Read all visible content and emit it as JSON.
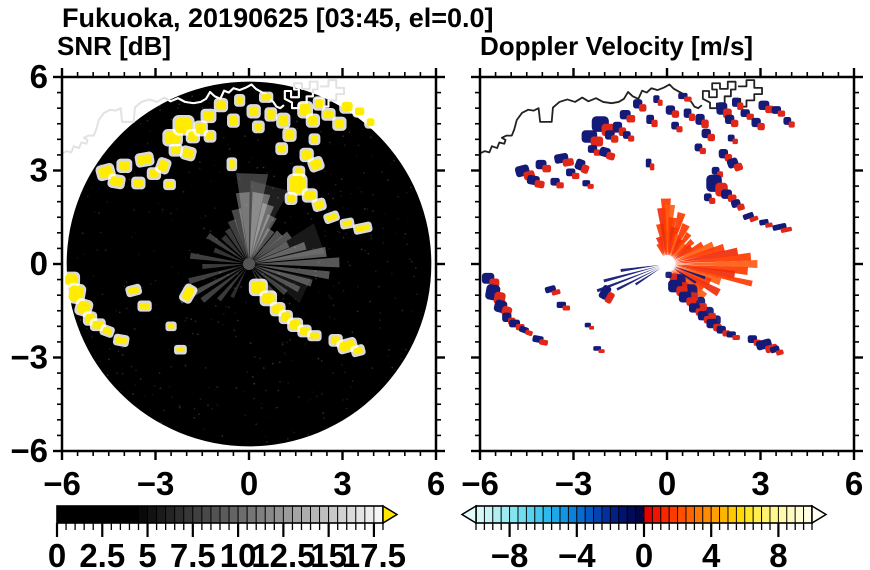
{
  "title": "Fukuoka, 20190625 [03:45, el=0.0]",
  "chart_data": {
    "type": "radar_ppi_pair",
    "title": "Fukuoka, 20190625 [03:45, el=0.0]",
    "panels": [
      {
        "subtitle": "SNR [dB]",
        "xlim": [
          -6,
          6
        ],
        "ylim": [
          -6,
          6
        ],
        "xtick_major": [
          -6,
          -3,
          0,
          3,
          6
        ],
        "xtick_labels": [
          "−6",
          "−3",
          "0",
          "3",
          "6"
        ],
        "ytick_major": [
          6,
          3,
          0,
          -3,
          -6
        ],
        "ytick_labels": [
          "6",
          "3",
          "0",
          "−3",
          "−6"
        ],
        "tick_minor_step": 0.5,
        "show_ylabels": true,
        "scan_disc": {
          "cx": 0,
          "cy": 0,
          "r": 5.85,
          "color": "#000000"
        }
      },
      {
        "subtitle": "Doppler Velocity [m/s]",
        "xlim": [
          -6,
          6
        ],
        "ylim": [
          -6,
          6
        ],
        "xtick_major": [
          -6,
          -3,
          0,
          3,
          6
        ],
        "xtick_labels": [
          "−6",
          "−3",
          "0",
          "3",
          "6"
        ],
        "ytick_major": [
          6,
          3,
          0,
          -3,
          -6
        ],
        "ytick_labels": [],
        "tick_minor_step": 0.5,
        "show_ylabels": false
      }
    ],
    "snr_colorbar": {
      "min": 0,
      "max": 18,
      "segment_step": 0.5,
      "majors": [
        0,
        2.5,
        5,
        7.5,
        10,
        12.5,
        15,
        17.5
      ],
      "labels": [
        "0",
        "2.5",
        "5",
        "7.5",
        "10",
        "12.5",
        "15",
        "17.5"
      ],
      "over": "#ffe800",
      "colors": [
        "#000000",
        "#000000",
        "#000000",
        "#000000",
        "#000000",
        "#000000",
        "#000000",
        "#000000",
        "#000000",
        "#090909",
        "#121212",
        "#1b1b1b",
        "#242424",
        "#2e2e2e",
        "#373737",
        "#404040",
        "#494949",
        "#525252",
        "#5b5b5b",
        "#646464",
        "#6d6d6d",
        "#767676",
        "#7f7f7f",
        "#898989",
        "#929292",
        "#9b9b9b",
        "#a4a4a4",
        "#adadad",
        "#b6b6b6",
        "#bfbfbf",
        "#c8c8c8",
        "#d2d2d2",
        "#dbdbdb",
        "#e4e4e4",
        "#ededed",
        "#f6f6f6"
      ]
    },
    "vel_colorbar": {
      "min": -10,
      "max": 10,
      "segment_step": 0.5,
      "majors": [
        -8,
        -4,
        0,
        4,
        8
      ],
      "labels": [
        "−8",
        "−4",
        "0",
        "4",
        "8"
      ],
      "under": "#e4fbfb",
      "over": "#fffef0",
      "colors": [
        "#d8f7f7",
        "#c4f4f5",
        "#b0f0f3",
        "#9cebf2",
        "#86e4f1",
        "#70dcf0",
        "#5ad2ef",
        "#44c6ee",
        "#2fb8ec",
        "#1da8e8",
        "#1096e2",
        "#0a82da",
        "#076cd0",
        "#0557c2",
        "#0443b2",
        "#03309e",
        "#022088",
        "#011370",
        "#010a58",
        "#010544",
        "#e60000",
        "#ef1400",
        "#f62800",
        "#fb3c00",
        "#ff5000",
        "#ff6400",
        "#ff7800",
        "#ff8c00",
        "#ffa000",
        "#ffb400",
        "#ffc800",
        "#ffd900",
        "#ffe626",
        "#ffed4d",
        "#fff270",
        "#fff68e",
        "#fff9a8",
        "#fffbbe",
        "#fffdd2",
        "#fffee2"
      ]
    },
    "colors": {
      "snr_echo": "#ffec00",
      "echo_halo": "#ffffff",
      "vel_pos_echo": "#e02818",
      "vel_neg_echo": "#141a78",
      "fan_orange": [
        "#ff3a00",
        "#f02c0c",
        "#ff5c14"
      ],
      "coast_left": "#ffffff",
      "coast_left_outside": "#e2e2e2",
      "coast_right": "#222222",
      "spoke_gray": "#cfcfcf",
      "disc": "#000000"
    },
    "coastline": [
      [
        -6.1,
        3.5
      ],
      [
        -5.85,
        3.62
      ],
      [
        -5.7,
        3.58
      ],
      [
        -5.62,
        3.78
      ],
      [
        -5.45,
        3.72
      ],
      [
        -5.38,
        3.9
      ],
      [
        -5.22,
        3.86
      ],
      [
        -5.18,
        3.98
      ],
      [
        -5.3,
        4.05
      ],
      [
        -5.15,
        4.12
      ],
      [
        -4.98,
        4.12
      ],
      [
        -4.9,
        4.32
      ],
      [
        -4.82,
        4.62
      ],
      [
        -4.65,
        4.85
      ],
      [
        -4.45,
        4.95
      ],
      [
        -4.28,
        4.92
      ],
      [
        -4.12,
        5.0
      ],
      [
        -4.07,
        4.56
      ],
      [
        -3.7,
        4.56
      ],
      [
        -3.66,
        5.02
      ],
      [
        -3.45,
        5.2
      ],
      [
        -3.2,
        5.28
      ],
      [
        -2.95,
        5.2
      ],
      [
        -2.72,
        5.34
      ],
      [
        -2.52,
        5.22
      ],
      [
        -2.28,
        5.32
      ],
      [
        -2.05,
        5.2
      ],
      [
        -1.78,
        5.16
      ],
      [
        -1.55,
        5.2
      ],
      [
        -1.38,
        5.3
      ],
      [
        -1.25,
        5.52
      ],
      [
        -1.1,
        5.38
      ],
      [
        -0.92,
        5.3
      ],
      [
        -0.8,
        5.56
      ],
      [
        -0.65,
        5.5
      ],
      [
        -0.5,
        5.64
      ],
      [
        -0.3,
        5.58
      ],
      [
        -0.1,
        5.66
      ],
      [
        0.08,
        5.76
      ],
      [
        0.22,
        5.62
      ],
      [
        0.4,
        5.52
      ],
      [
        0.55,
        5.44
      ],
      [
        0.65,
        5.3
      ],
      [
        0.78,
        5.2
      ],
      [
        0.88,
        5.05
      ],
      [
        1.0,
        5.0
      ],
      [
        1.1,
        5.08
      ]
    ],
    "harbors": [
      [
        [
          1.15,
          5.3
        ],
        [
          1.15,
          5.55
        ],
        [
          1.35,
          5.55
        ],
        [
          1.35,
          5.35
        ],
        [
          1.6,
          5.35
        ],
        [
          1.6,
          5.6
        ],
        [
          1.45,
          5.6
        ],
        [
          1.45,
          5.8
        ],
        [
          1.7,
          5.8
        ],
        [
          1.7,
          5.62
        ],
        [
          1.95,
          5.62
        ],
        [
          1.95,
          5.85
        ],
        [
          2.2,
          5.85
        ],
        [
          2.2,
          5.6
        ],
        [
          2.05,
          5.6
        ],
        [
          2.05,
          5.38
        ],
        [
          1.85,
          5.38
        ],
        [
          1.85,
          5.15
        ],
        [
          1.6,
          5.15
        ],
        [
          1.6,
          5.0
        ],
        [
          1.38,
          5.0
        ],
        [
          1.38,
          5.18
        ],
        [
          1.15,
          5.3
        ]
      ],
      [
        [
          2.3,
          5.7
        ],
        [
          2.55,
          5.7
        ],
        [
          2.55,
          5.9
        ],
        [
          2.8,
          5.9
        ],
        [
          2.8,
          5.65
        ],
        [
          3.05,
          5.65
        ],
        [
          3.05,
          5.45
        ],
        [
          2.8,
          5.45
        ],
        [
          2.8,
          5.25
        ],
        [
          2.55,
          5.25
        ],
        [
          2.55,
          5.05
        ],
        [
          2.35,
          5.05
        ],
        [
          2.35,
          5.3
        ],
        [
          2.15,
          5.3
        ]
      ]
    ],
    "echo_clusters": [
      [
        -4.6,
        2.95,
        0.45,
        0.35,
        -15
      ],
      [
        -4.25,
        2.65,
        0.4,
        0.3,
        10
      ],
      [
        -4.0,
        3.15,
        0.35,
        0.3,
        0
      ],
      [
        -3.55,
        2.6,
        0.3,
        0.25,
        0
      ],
      [
        -3.35,
        3.35,
        0.45,
        0.3,
        -10
      ],
      [
        -3.05,
        2.9,
        0.3,
        0.25,
        0
      ],
      [
        -2.75,
        3.15,
        0.3,
        0.35,
        20
      ],
      [
        -2.55,
        2.55,
        0.25,
        0.2,
        0
      ],
      [
        -2.45,
        4.05,
        0.5,
        0.4,
        0
      ],
      [
        -2.1,
        4.45,
        0.55,
        0.5,
        0
      ],
      [
        -1.8,
        4.1,
        0.3,
        0.3,
        0
      ],
      [
        -2.35,
        3.65,
        0.3,
        0.25,
        0
      ],
      [
        -1.95,
        3.55,
        0.35,
        0.3,
        15
      ],
      [
        -1.55,
        4.35,
        0.3,
        0.35,
        0
      ],
      [
        -1.3,
        4.75,
        0.35,
        0.3,
        0
      ],
      [
        -1.25,
        4.1,
        0.25,
        0.25,
        0
      ],
      [
        -0.9,
        5.1,
        0.3,
        0.3,
        0
      ],
      [
        -0.5,
        4.6,
        0.25,
        0.3,
        0
      ],
      [
        -0.3,
        5.25,
        0.2,
        0.25,
        0
      ],
      [
        0.15,
        4.9,
        0.3,
        0.3,
        0
      ],
      [
        0.3,
        4.4,
        0.25,
        0.25,
        0
      ],
      [
        0.55,
        5.35,
        0.3,
        0.2,
        0
      ],
      [
        0.7,
        4.8,
        0.25,
        0.3,
        0
      ],
      [
        1.1,
        4.6,
        0.3,
        0.35,
        0
      ],
      [
        1.3,
        4.15,
        0.3,
        0.3,
        0
      ],
      [
        1.05,
        3.7,
        0.25,
        0.25,
        0
      ],
      [
        1.8,
        4.95,
        0.35,
        0.4,
        0
      ],
      [
        2.05,
        4.6,
        0.3,
        0.3,
        0
      ],
      [
        2.25,
        5.15,
        0.25,
        0.3,
        0
      ],
      [
        2.55,
        4.8,
        0.3,
        0.25,
        0
      ],
      [
        2.9,
        4.5,
        0.3,
        0.3,
        0
      ],
      [
        3.15,
        5.05,
        0.35,
        0.3,
        0
      ],
      [
        3.55,
        4.9,
        0.3,
        0.25,
        0
      ],
      [
        3.9,
        4.55,
        0.25,
        0.25,
        0
      ],
      [
        2.1,
        4.0,
        0.22,
        0.22,
        0
      ],
      [
        1.85,
        3.5,
        0.3,
        0.3,
        0
      ],
      [
        2.15,
        3.2,
        0.35,
        0.3,
        -20
      ],
      [
        1.6,
        2.95,
        0.25,
        0.25,
        0
      ],
      [
        1.55,
        2.55,
        0.5,
        0.55,
        0
      ],
      [
        1.95,
        2.2,
        0.35,
        0.3,
        0
      ],
      [
        2.25,
        1.9,
        0.3,
        0.25,
        -15
      ],
      [
        1.35,
        2.1,
        0.25,
        0.25,
        0
      ],
      [
        2.65,
        1.5,
        0.35,
        0.18,
        -20
      ],
      [
        3.15,
        1.3,
        0.3,
        0.18,
        -10
      ],
      [
        3.65,
        1.15,
        0.45,
        0.18,
        -12
      ],
      [
        -0.55,
        3.2,
        0.18,
        0.28,
        0
      ],
      [
        -5.7,
        -0.5,
        0.4,
        0.35,
        0
      ],
      [
        -5.55,
        -0.95,
        0.45,
        0.5,
        10
      ],
      [
        -5.3,
        -1.4,
        0.4,
        0.4,
        15
      ],
      [
        -5.1,
        -1.75,
        0.3,
        0.3,
        0
      ],
      [
        -4.85,
        -1.95,
        0.35,
        0.25,
        0
      ],
      [
        -4.55,
        -2.15,
        0.3,
        0.2,
        20
      ],
      [
        -4.1,
        -2.45,
        0.35,
        0.22,
        10
      ],
      [
        -3.7,
        -0.85,
        0.35,
        0.2,
        -15
      ],
      [
        -3.35,
        -1.35,
        0.3,
        0.2,
        0
      ],
      [
        -1.95,
        -0.95,
        0.28,
        0.45,
        30
      ],
      [
        0.3,
        -0.75,
        0.45,
        0.4,
        0
      ],
      [
        0.62,
        -1.1,
        0.4,
        0.35,
        0
      ],
      [
        0.92,
        -1.45,
        0.35,
        0.3,
        0
      ],
      [
        1.18,
        -1.7,
        0.3,
        0.3,
        0
      ],
      [
        1.48,
        -1.95,
        0.35,
        0.3,
        0
      ],
      [
        1.78,
        -2.15,
        0.3,
        0.25,
        0
      ],
      [
        2.1,
        -2.3,
        0.3,
        0.2,
        0
      ],
      [
        2.78,
        -2.45,
        0.3,
        0.25,
        0
      ],
      [
        3.15,
        -2.62,
        0.5,
        0.3,
        -15
      ],
      [
        3.5,
        -2.78,
        0.3,
        0.2,
        -15
      ],
      [
        -2.5,
        -2.0,
        0.2,
        0.15,
        0
      ],
      [
        -2.2,
        -2.75,
        0.25,
        0.15,
        0
      ]
    ],
    "snr_spokes": [
      [
        88,
        2.9,
        16,
        0.3
      ],
      [
        80,
        2.3,
        9,
        0.45
      ],
      [
        72,
        2.0,
        6,
        0.45
      ],
      [
        64,
        1.7,
        5,
        0.4
      ],
      [
        57,
        1.3,
        4,
        0.4
      ],
      [
        95,
        2.3,
        7,
        0.4
      ],
      [
        103,
        1.8,
        5,
        0.35
      ],
      [
        112,
        1.5,
        4,
        0.3
      ],
      [
        122,
        1.3,
        3,
        0.28
      ],
      [
        133,
        1.2,
        3,
        0.25
      ],
      [
        145,
        1.6,
        3,
        0.3
      ],
      [
        158,
        1.2,
        2.5,
        0.25
      ],
      [
        172,
        1.9,
        3,
        0.3
      ],
      [
        183,
        1.5,
        2.5,
        0.28
      ],
      [
        196,
        2.0,
        3,
        0.3
      ],
      [
        208,
        2.5,
        3.5,
        0.35
      ],
      [
        218,
        1.9,
        3,
        0.3
      ],
      [
        230,
        1.5,
        2.5,
        0.28
      ],
      [
        243,
        1.2,
        2,
        0.22
      ],
      [
        45,
        1.4,
        4,
        0.4
      ],
      [
        36,
        1.6,
        4,
        0.4
      ],
      [
        27,
        1.4,
        3.5,
        0.38
      ],
      [
        18,
        1.9,
        4,
        0.42
      ],
      [
        9,
        2.5,
        5,
        0.45
      ],
      [
        1,
        2.9,
        5,
        0.42
      ],
      [
        -8,
        2.6,
        4,
        0.4
      ],
      [
        -17,
        2.1,
        3.5,
        0.38
      ],
      [
        -27,
        1.8,
        3,
        0.35
      ],
      [
        -38,
        1.5,
        3,
        0.3
      ],
      [
        -50,
        1.3,
        2.5,
        0.3
      ],
      [
        -62,
        1.1,
        2,
        0.25
      ],
      [
        75,
        2.6,
        20,
        0.15
      ],
      [
        20,
        2.4,
        16,
        0.12
      ],
      [
        -25,
        2.0,
        14,
        0.1
      ]
    ],
    "vel_fan_rays": [
      [
        100,
        1.3,
        4,
        0
      ],
      [
        95,
        1.8,
        5,
        1
      ],
      [
        91,
        2.1,
        5,
        0
      ],
      [
        87,
        1.9,
        5,
        2
      ],
      [
        83,
        1.5,
        4,
        0
      ],
      [
        78,
        1.2,
        4,
        1
      ],
      [
        74,
        1.7,
        4,
        0
      ],
      [
        69,
        1.0,
        3,
        2
      ],
      [
        64,
        1.4,
        4,
        0
      ],
      [
        59,
        0.9,
        3,
        1
      ],
      [
        54,
        1.2,
        3,
        0
      ],
      [
        48,
        0.85,
        3,
        2
      ],
      [
        42,
        1.1,
        3,
        0
      ],
      [
        35,
        0.95,
        3,
        1
      ],
      [
        29,
        1.3,
        3,
        0
      ],
      [
        22,
        1.6,
        4,
        2
      ],
      [
        16,
        1.9,
        4,
        0
      ],
      [
        10,
        2.3,
        4,
        1
      ],
      [
        5,
        2.7,
        4,
        0
      ],
      [
        0,
        2.9,
        4,
        2
      ],
      [
        -5,
        2.6,
        4,
        0
      ],
      [
        -9,
        2.2,
        4,
        1
      ],
      [
        -13,
        2.8,
        3,
        0
      ],
      [
        -18,
        1.8,
        4,
        2
      ],
      [
        -23,
        1.5,
        4,
        0
      ],
      [
        -29,
        1.9,
        4,
        1
      ],
      [
        -35,
        1.4,
        4,
        0
      ],
      [
        -41,
        1.6,
        4,
        2
      ],
      [
        -47,
        1.2,
        4,
        0
      ],
      [
        -54,
        1.0,
        3,
        1
      ],
      [
        -61,
        0.9,
        3,
        0
      ],
      [
        107,
        0.9,
        3,
        1
      ],
      [
        114,
        0.7,
        2,
        0
      ]
    ],
    "vel_navy_rays": [
      [
        188,
        1.5,
        1.5
      ],
      [
        195,
        2.1,
        1.5
      ],
      [
        201,
        2.4,
        1.5
      ],
      [
        207,
        1.8,
        1.3
      ],
      [
        213,
        1.2,
        1.2
      ],
      [
        -20,
        1.3,
        1.5
      ],
      [
        -33,
        1.1,
        1.3
      ],
      [
        -70,
        0.8,
        1.5
      ]
    ],
    "vel_center_patches": [
      [
        0.35,
        -0.55,
        0.5,
        0.45,
        "n"
      ],
      [
        0.7,
        -0.9,
        0.55,
        0.5,
        "n"
      ],
      [
        1.0,
        -1.25,
        0.45,
        0.4,
        "n"
      ],
      [
        1.3,
        -1.55,
        0.4,
        0.35,
        "n"
      ],
      [
        1.55,
        -1.8,
        0.35,
        0.3,
        "n"
      ],
      [
        0.5,
        -0.72,
        0.3,
        0.28,
        "r"
      ],
      [
        0.85,
        -1.05,
        0.3,
        0.28,
        "r"
      ],
      [
        1.15,
        -1.38,
        0.26,
        0.26,
        "r"
      ],
      [
        1.45,
        -1.68,
        0.24,
        0.22,
        "r"
      ],
      [
        0.2,
        -0.42,
        0.24,
        0.24,
        "r"
      ],
      [
        0.05,
        -0.35,
        0.2,
        0.2,
        "n"
      ]
    ],
    "radar_center": [
      0,
      0
    ]
  }
}
